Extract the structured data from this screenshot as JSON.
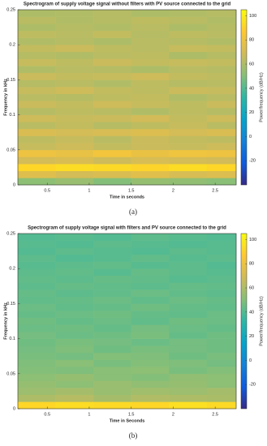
{
  "chart_data": [
    {
      "type": "heatmap",
      "title": "Spectrogram of supply voltage signal without filters with PV source connected to the grid",
      "x_label": "Time in seconds",
      "y_label": "Frequency in kHz",
      "colorbar_label": "Power/frequency (dB/Hz)",
      "caption": "(a)",
      "colormap": "parula",
      "xlim": [
        0.15,
        2.75
      ],
      "xticks": [
        0.5,
        1,
        1.5,
        2,
        2.5
      ],
      "ylim": [
        0,
        0.25
      ],
      "yticks": [
        0,
        0.05,
        0.1,
        0.15,
        0.2,
        0.25
      ],
      "clim": [
        -40,
        105
      ],
      "cticks": [
        -20,
        0,
        20,
        40,
        60,
        80,
        100
      ],
      "xbins": [
        0.15,
        0.6,
        1.05,
        1.5,
        1.95,
        2.4,
        2.75
      ],
      "ybins": [
        0,
        0.01,
        0.02,
        0.03,
        0.04,
        0.05,
        0.06,
        0.07,
        0.08,
        0.09,
        0.1,
        0.11,
        0.12,
        0.13,
        0.14,
        0.15,
        0.16,
        0.17,
        0.18,
        0.19,
        0.2,
        0.21,
        0.22,
        0.23,
        0.24,
        0.25
      ],
      "z": [
        [
          52,
          55,
          50,
          54,
          53,
          51
        ],
        [
          74,
          70,
          72,
          75,
          71,
          73
        ],
        [
          92,
          94,
          93,
          91,
          94,
          92
        ],
        [
          70,
          72,
          68,
          71,
          70,
          69
        ],
        [
          80,
          78,
          82,
          79,
          81,
          80
        ],
        [
          66,
          68,
          65,
          67,
          66,
          68
        ],
        [
          64,
          66,
          63,
          67,
          65,
          64
        ],
        [
          72,
          70,
          71,
          73,
          70,
          72
        ],
        [
          63,
          65,
          62,
          64,
          66,
          63
        ],
        [
          68,
          66,
          67,
          69,
          65,
          68
        ],
        [
          62,
          64,
          63,
          61,
          64,
          62
        ],
        [
          67,
          65,
          68,
          66,
          64,
          67
        ],
        [
          63,
          62,
          64,
          65,
          61,
          63
        ],
        [
          66,
          68,
          65,
          64,
          67,
          66
        ],
        [
          62,
          63,
          61,
          64,
          62,
          63
        ],
        [
          67,
          65,
          66,
          68,
          65,
          64
        ],
        [
          61,
          63,
          62,
          60,
          63,
          62
        ],
        [
          66,
          64,
          67,
          65,
          66,
          65
        ],
        [
          62,
          61,
          63,
          64,
          60,
          62
        ],
        [
          65,
          67,
          64,
          63,
          66,
          65
        ],
        [
          61,
          62,
          60,
          63,
          62,
          61
        ],
        [
          64,
          63,
          65,
          62,
          64,
          63
        ],
        [
          60,
          62,
          61,
          63,
          60,
          62
        ],
        [
          63,
          61,
          62,
          64,
          63,
          61
        ],
        [
          60,
          61,
          62,
          60,
          61,
          62
        ]
      ]
    },
    {
      "type": "heatmap",
      "title": "Spectrogram of supply voltage signal with filters and PV source connected to the grid",
      "x_label": "Time in Seconds",
      "y_label": "Frequency in kHz",
      "colorbar_label": "Power/frequency (dB/Hz)",
      "caption": "(b)",
      "colormap": "parula",
      "xlim": [
        0.15,
        2.75
      ],
      "xticks": [
        0.5,
        1,
        1.5,
        2,
        2.5
      ],
      "ylim": [
        0,
        0.25
      ],
      "yticks": [
        0,
        0.05,
        0.1,
        0.15,
        0.2,
        0.25
      ],
      "clim": [
        -40,
        105
      ],
      "cticks": [
        -20,
        0,
        20,
        40,
        60,
        80,
        100
      ],
      "xbins": [
        0.15,
        0.6,
        1.05,
        1.5,
        1.95,
        2.4,
        2.75
      ],
      "ybins": [
        0,
        0.01,
        0.02,
        0.03,
        0.04,
        0.05,
        0.06,
        0.07,
        0.08,
        0.09,
        0.1,
        0.11,
        0.12,
        0.13,
        0.14,
        0.15,
        0.16,
        0.17,
        0.18,
        0.19,
        0.2,
        0.21,
        0.22,
        0.23,
        0.24,
        0.25
      ],
      "z": [
        [
          92,
          94,
          93,
          92,
          95,
          93
        ],
        [
          60,
          62,
          58,
          61,
          60,
          59
        ],
        [
          56,
          58,
          55,
          57,
          56,
          58
        ],
        [
          54,
          52,
          55,
          53,
          54,
          52
        ],
        [
          52,
          54,
          51,
          50,
          53,
          52
        ],
        [
          50,
          49,
          51,
          52,
          48,
          50
        ],
        [
          49,
          51,
          48,
          50,
          49,
          47
        ],
        [
          48,
          47,
          50,
          49,
          46,
          48
        ],
        [
          47,
          49,
          46,
          48,
          47,
          46
        ],
        [
          46,
          48,
          47,
          45,
          47,
          46
        ],
        [
          47,
          45,
          46,
          48,
          44,
          46
        ],
        [
          45,
          46,
          44,
          47,
          45,
          44
        ],
        [
          46,
          44,
          45,
          43,
          46,
          45
        ],
        [
          44,
          45,
          46,
          44,
          43,
          45
        ],
        [
          45,
          43,
          44,
          46,
          44,
          43
        ],
        [
          43,
          44,
          45,
          43,
          45,
          44
        ],
        [
          44,
          42,
          43,
          45,
          43,
          42
        ],
        [
          42,
          44,
          43,
          42,
          44,
          43
        ],
        [
          43,
          42,
          44,
          43,
          41,
          42
        ],
        [
          42,
          43,
          41,
          44,
          42,
          41
        ],
        [
          41,
          42,
          43,
          41,
          42,
          40
        ],
        [
          42,
          40,
          41,
          43,
          41,
          42
        ],
        [
          40,
          42,
          41,
          40,
          42,
          41
        ],
        [
          41,
          40,
          42,
          41,
          40,
          41
        ],
        [
          40,
          41,
          40,
          42,
          41,
          40
        ]
      ]
    }
  ]
}
